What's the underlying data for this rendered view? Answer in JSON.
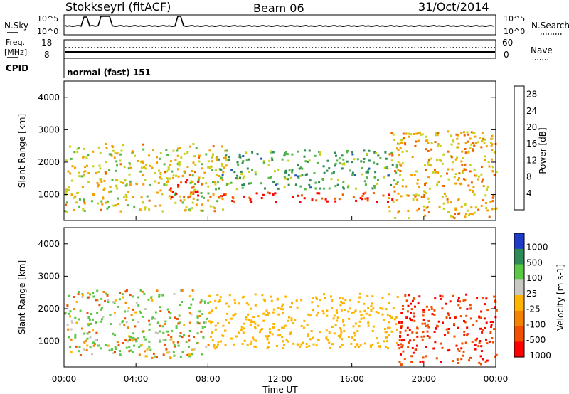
{
  "header": {
    "station": "Stokkseyri (fitACF)",
    "beam": "Beam 06",
    "date": "31/Oct/2014"
  },
  "top_panels": {
    "nsky_label": "N.Sky",
    "nsearch_label": "N.Search",
    "nsky_ticks": [
      "10^5",
      "10^0"
    ],
    "nsearch_ticks": [
      "10^5",
      "10^0"
    ],
    "freq_label_1": "Freq.",
    "freq_label_2": "[MHz]",
    "freq_ticks": [
      "18",
      "8"
    ],
    "nave_label": "Nave",
    "nave_ticks": [
      "60",
      "0"
    ],
    "cpid_label": "CPID",
    "cpid_value": "normal (fast) 151"
  },
  "chart_data": [
    {
      "type": "heatmap",
      "panel": "power",
      "xlabel": "Time UT",
      "ylabel": "Slant Range [km]",
      "x_ticks": [
        "00:00",
        "04:00",
        "08:00",
        "12:00",
        "16:00",
        "20:00",
        "00:00"
      ],
      "x_range_hours": [
        0,
        24
      ],
      "y_ticks": [
        1000,
        2000,
        3000,
        4000
      ],
      "ylim": [
        200,
        4500
      ],
      "colorbar": {
        "label": "Power [dB]",
        "ticks": [
          4,
          8,
          12,
          16,
          20,
          24,
          28
        ],
        "range": [
          0,
          30
        ]
      },
      "colors": [
        "#0000ff",
        "#1e5bb5",
        "#2e8b57",
        "#54b848",
        "#c8d21e",
        "#f5a000",
        "#f06400",
        "#ff0000"
      ],
      "features": [
        {
          "t_start": 0.0,
          "t_end": 9.0,
          "range_min": 500,
          "range_max": 2600,
          "power_db": 18
        },
        {
          "t_start": 5.8,
          "t_end": 7.5,
          "range_min": 800,
          "range_max": 1500,
          "power_db": 28
        },
        {
          "t_start": 8.5,
          "t_end": 18.5,
          "range_min": 800,
          "range_max": 1100,
          "power_db": 28
        },
        {
          "t_start": 8.5,
          "t_end": 18.5,
          "range_min": 1200,
          "range_max": 2400,
          "power_db": 12
        },
        {
          "t_start": 18.0,
          "t_end": 24.0,
          "range_min": 300,
          "range_max": 3000,
          "power_db": 20
        }
      ]
    },
    {
      "type": "heatmap",
      "panel": "velocity",
      "xlabel": "Time UT",
      "ylabel": "Slant Range [km]",
      "x_ticks": [
        "00:00",
        "04:00",
        "08:00",
        "12:00",
        "16:00",
        "20:00",
        "00:00"
      ],
      "x_range_hours": [
        0,
        24
      ],
      "y_ticks": [
        1000,
        2000,
        3000,
        4000
      ],
      "ylim": [
        200,
        4500
      ],
      "colorbar": {
        "label": "Velocity [m s-1]",
        "ticks": [
          1000,
          500,
          100,
          25,
          -25,
          -100,
          -500,
          -1000
        ]
      },
      "colors": [
        "#1e3cc8",
        "#2e8b57",
        "#5ac846",
        "#c8c8c0",
        "#ffb400",
        "#f58200",
        "#f05000",
        "#ff0000"
      ],
      "features": [
        {
          "t_start": 0.0,
          "t_end": 8.0,
          "range_min": 500,
          "range_max": 2600,
          "velocity": 100
        },
        {
          "t_start": 8.0,
          "t_end": 18.5,
          "range_min": 800,
          "range_max": 2500,
          "velocity": 0
        },
        {
          "t_start": 18.5,
          "t_end": 24.0,
          "range_min": 300,
          "range_max": 2500,
          "velocity": -500
        }
      ]
    }
  ]
}
